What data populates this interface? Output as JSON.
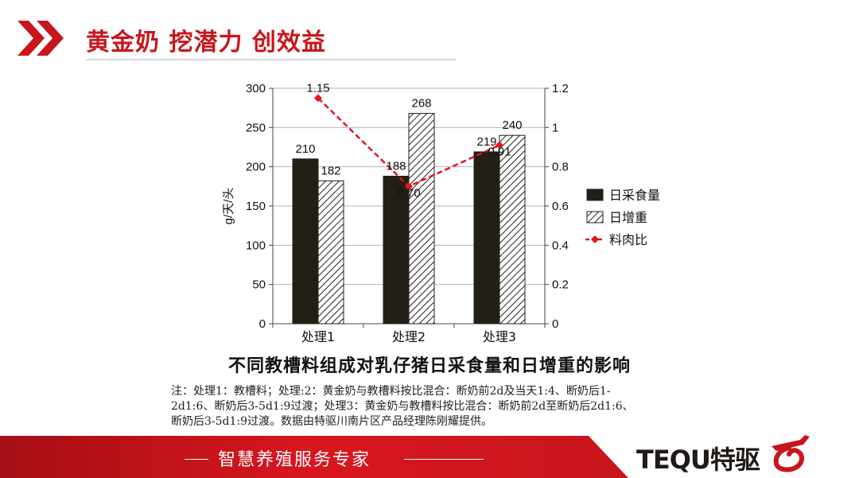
{
  "header": {
    "title": "黄金奶 挖潜力 创效益",
    "accent_color": "#c8161d"
  },
  "chart_data": {
    "type": "bar",
    "categories": [
      "处理1",
      "处理2",
      "处理3"
    ],
    "series": [
      {
        "name": "日采食量",
        "kind": "bar",
        "axis": "left",
        "pattern": "solid",
        "color": "#231f16",
        "values": [
          210,
          188,
          219
        ]
      },
      {
        "name": "日增重",
        "kind": "bar",
        "axis": "left",
        "pattern": "hatch",
        "color": "#ffffff",
        "values": [
          182,
          268,
          240
        ]
      },
      {
        "name": "料肉比",
        "kind": "line",
        "axis": "right",
        "color": "#e3161e",
        "values": [
          1.15,
          0.7,
          0.91
        ]
      }
    ],
    "bar_labels": [
      [
        "210",
        "188",
        "219"
      ],
      [
        "182",
        "268",
        "240"
      ]
    ],
    "line_labels": [
      "1.15",
      "0.70",
      "0.91"
    ],
    "ylabel": "g/天/头",
    "ylim": [
      0,
      300
    ],
    "y_ticks": [
      "0",
      "50",
      "100",
      "150",
      "200",
      "250",
      "300"
    ],
    "y2lim": [
      0,
      1.2
    ],
    "y2_ticks": [
      "0",
      "0.2",
      "0.4",
      "0.6",
      "0.8",
      "1",
      "1.2"
    ],
    "grid": true,
    "legend": "right",
    "title": "不同教槽料组成对乳仔猪日采食量和日增重的影响"
  },
  "note": {
    "line1": "注：处理1：教槽料；处理:2：黄金奶与教槽料按比混合：断奶前2d及当天1:4、断奶后1-",
    "line2": "2d1:6、断奶后3-5d1:9过渡；处理3：黄金奶与教槽料按比混合：断奶前2d至断奶后2d1:6、",
    "line3": "断奶后3-5d1:9过渡。数据由特驱川南片区产品经理陈刚耀提供。"
  },
  "footer": {
    "slogan": "智慧养殖服务专家",
    "brand": "TEQU特驱",
    "band_color": "#c8161d"
  }
}
